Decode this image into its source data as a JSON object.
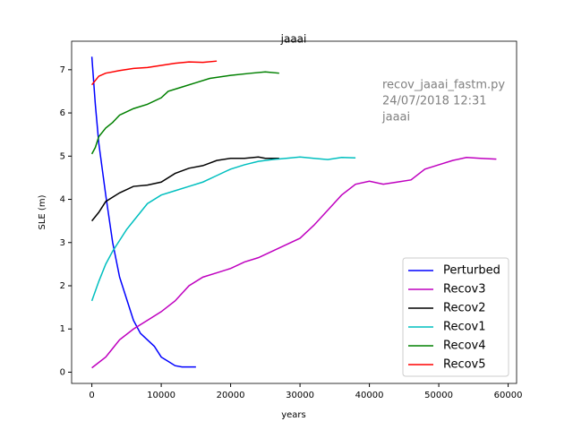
{
  "chart_data": {
    "type": "line",
    "title": "jaaai",
    "xlabel": "years",
    "ylabel": "SLE (m)",
    "annotation": [
      "recov_jaaai_fastm.py",
      "24/07/2018 12:31",
      "jaaai"
    ],
    "xlim": [
      -2915,
      61215
    ],
    "ylim": [
      -0.26,
      7.66
    ],
    "xticks": [
      0,
      10000,
      20000,
      30000,
      40000,
      50000,
      60000
    ],
    "yticks": [
      0,
      1,
      2,
      3,
      4,
      5,
      6,
      7
    ],
    "legend": "lower right",
    "series": [
      {
        "name": "Perturbed",
        "color": "#0000ff",
        "x": [
          0,
          500,
          1000,
          2000,
          3000,
          4000,
          5000,
          6000,
          7000,
          8000,
          9000,
          10000,
          11000,
          12000,
          13000,
          15000
        ],
        "values": [
          7.3,
          6.2,
          5.3,
          4.1,
          3.0,
          2.2,
          1.7,
          1.2,
          0.9,
          0.75,
          0.6,
          0.35,
          0.25,
          0.15,
          0.12,
          0.12
        ]
      },
      {
        "name": "Recov3",
        "color": "#bf00bf",
        "x": [
          0,
          2000,
          4000,
          6000,
          8000,
          10000,
          12000,
          14000,
          16000,
          18000,
          20000,
          22000,
          24000,
          26000,
          28000,
          30000,
          32000,
          34000,
          36000,
          38000,
          40000,
          42000,
          44000,
          46000,
          48000,
          50000,
          52000,
          54000,
          56000,
          58300
        ],
        "values": [
          0.1,
          0.35,
          0.75,
          1.0,
          1.2,
          1.4,
          1.65,
          2.0,
          2.2,
          2.3,
          2.4,
          2.55,
          2.65,
          2.8,
          2.95,
          3.1,
          3.4,
          3.75,
          4.1,
          4.35,
          4.42,
          4.35,
          4.4,
          4.45,
          4.7,
          4.8,
          4.9,
          4.97,
          4.95,
          4.93
        ]
      },
      {
        "name": "Recov2",
        "color": "#000000",
        "x": [
          0,
          1000,
          2000,
          4000,
          6000,
          8000,
          10000,
          12000,
          14000,
          16000,
          18000,
          20000,
          22000,
          24000,
          25000,
          27000
        ],
        "values": [
          3.5,
          3.7,
          3.95,
          4.15,
          4.3,
          4.33,
          4.4,
          4.6,
          4.72,
          4.78,
          4.9,
          4.95,
          4.95,
          4.98,
          4.95,
          4.95
        ]
      },
      {
        "name": "Recov1",
        "color": "#00bfbf",
        "x": [
          0,
          1000,
          2000,
          3000,
          4000,
          5000,
          6000,
          7000,
          8000,
          10000,
          12000,
          14000,
          16000,
          18000,
          20000,
          22000,
          24000,
          26000,
          28000,
          30000,
          32000,
          34000,
          36000,
          38000
        ],
        "values": [
          1.65,
          2.1,
          2.5,
          2.8,
          3.05,
          3.3,
          3.5,
          3.7,
          3.9,
          4.1,
          4.2,
          4.3,
          4.4,
          4.55,
          4.7,
          4.8,
          4.88,
          4.92,
          4.95,
          4.98,
          4.95,
          4.92,
          4.97,
          4.96
        ]
      },
      {
        "name": "Recov4",
        "color": "#008000",
        "x": [
          0,
          500,
          1000,
          2000,
          3000,
          4000,
          6000,
          8000,
          10000,
          11000,
          13000,
          15000,
          17000,
          20000,
          23000,
          25000,
          27000
        ],
        "values": [
          5.05,
          5.2,
          5.45,
          5.65,
          5.78,
          5.95,
          6.1,
          6.2,
          6.35,
          6.5,
          6.6,
          6.7,
          6.8,
          6.87,
          6.92,
          6.95,
          6.92
        ]
      },
      {
        "name": "Recov5",
        "color": "#ff0000",
        "x": [
          0,
          1000,
          2000,
          4000,
          6000,
          8000,
          10000,
          12000,
          14000,
          16000,
          18000
        ],
        "values": [
          6.65,
          6.85,
          6.92,
          6.98,
          7.03,
          7.05,
          7.1,
          7.15,
          7.18,
          7.17,
          7.2
        ]
      }
    ]
  }
}
